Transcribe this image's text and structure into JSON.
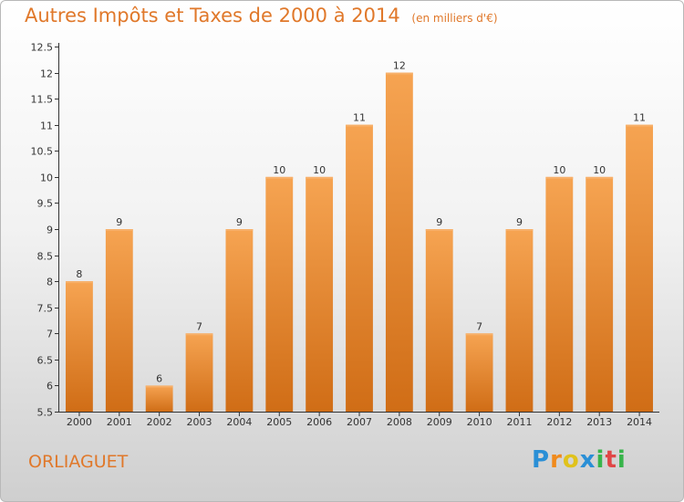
{
  "title_main": "Autres Impôts et Taxes de 2000 à 2014",
  "title_unit": "(en milliers d'€)",
  "commune": "ORLIAGUET",
  "logo": {
    "letters": [
      "P",
      "r",
      "o",
      "x",
      "i",
      "t",
      "i"
    ],
    "colors": [
      "#2a8fd6",
      "#f08a1c",
      "#e0c21c",
      "#2a8fd6",
      "#38b44a",
      "#e04646",
      "#38b44a"
    ]
  },
  "colors": {
    "accent": "#e0782a",
    "bar_top": "#f6a452",
    "bar_bottom": "#d06d16"
  },
  "chart_data": {
    "type": "bar",
    "title": "Autres Impôts et Taxes de 2000 à 2014",
    "unit": "(en milliers d'€)",
    "categories": [
      "2000",
      "2001",
      "2002",
      "2003",
      "2004",
      "2005",
      "2006",
      "2007",
      "2008",
      "2009",
      "2010",
      "2011",
      "2012",
      "2013",
      "2014"
    ],
    "values": [
      8,
      9,
      6,
      7,
      9,
      10,
      10,
      11,
      12,
      9,
      7,
      9,
      10,
      10,
      11
    ],
    "value_labels": [
      "8",
      "9",
      "6",
      "7",
      "9",
      "10",
      "10",
      "11",
      "12",
      "9",
      "7",
      "9",
      "10",
      "10",
      "11"
    ],
    "ylim": [
      5.5,
      12.5
    ],
    "yticks": [
      5.5,
      6,
      6.5,
      7,
      7.5,
      8,
      8.5,
      9,
      9.5,
      10,
      10.5,
      11,
      11.5,
      12,
      12.5
    ],
    "ytick_labels": [
      "5.5",
      "6",
      "6.5",
      "7",
      "7.5",
      "8",
      "8.5",
      "9",
      "9.5",
      "10",
      "10.5",
      "11",
      "11.5",
      "12",
      "12.5"
    ],
    "grid": false,
    "legend": "none"
  }
}
